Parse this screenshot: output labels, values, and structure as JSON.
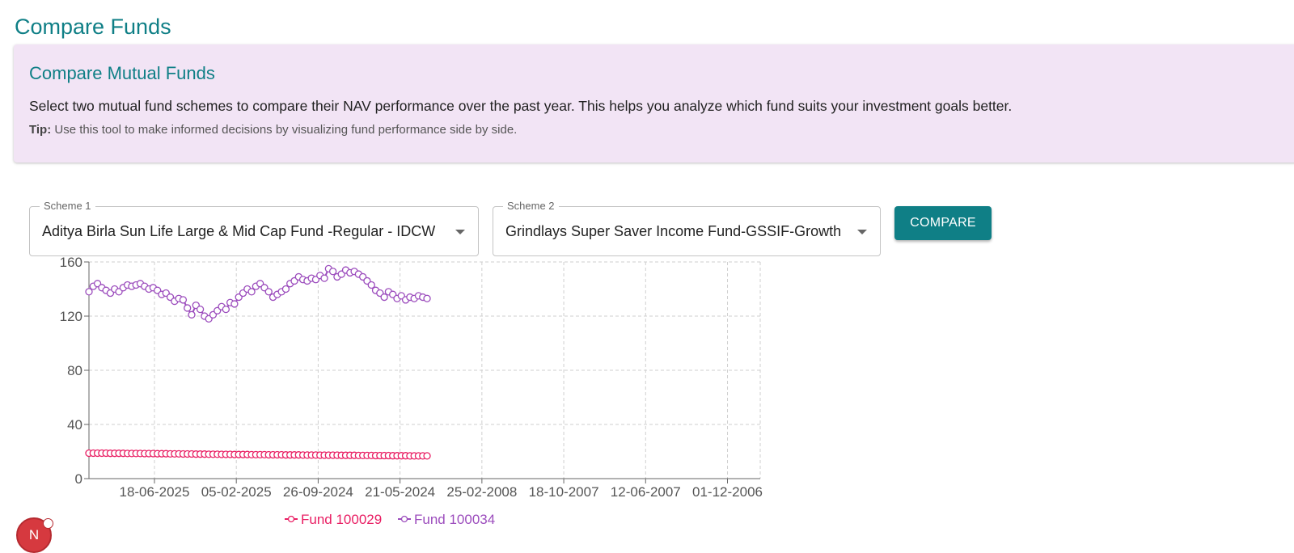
{
  "page": {
    "title": "Compare Funds"
  },
  "info": {
    "heading": "Compare Mutual Funds",
    "description": "Select two mutual fund schemes to compare their NAV performance over the past year. This helps you analyze which fund suits your investment goals better.",
    "tip_label": "Tip:",
    "tip_text": " Use this tool to make informed decisions by visualizing fund performance side by side."
  },
  "form": {
    "scheme1": {
      "label": "Scheme 1",
      "value": "Aditya Birla Sun Life Large & Mid Cap Fund -Regular - IDCW"
    },
    "scheme2": {
      "label": "Scheme 2",
      "value": "Grindlays Super Saver Income Fund-GSSIF-Growth"
    },
    "compare_label": "COMPARE"
  },
  "chart_data": {
    "type": "line",
    "x_tick_labels": [
      "18-06-2025",
      "05-02-2025",
      "26-09-2024",
      "21-05-2024",
      "25-02-2008",
      "18-10-2007",
      "12-06-2007",
      "01-12-2006"
    ],
    "y_ticks": [
      0,
      40,
      80,
      120,
      160
    ],
    "ylim": [
      0,
      160
    ],
    "grid": true,
    "legend_position": "bottom",
    "series": [
      {
        "name": "Fund 100029",
        "color": "#e91e63",
        "marker": "open-circle",
        "values": [
          18.8,
          18.8,
          18.8,
          18.8,
          18.8,
          18.7,
          18.7,
          18.7,
          18.7,
          18.6,
          18.6,
          18.6,
          18.6,
          18.5,
          18.5,
          18.5,
          18.4,
          18.4,
          18.4,
          18.3,
          18.3,
          18.3,
          18.2,
          18.2,
          18.2,
          18.1,
          18.1,
          18.1,
          18.0,
          18.0,
          18.0,
          17.9,
          17.9,
          17.9,
          17.8,
          17.8,
          17.8,
          17.8,
          17.7,
          17.7,
          17.7,
          17.7,
          17.6,
          17.6,
          17.6,
          17.6,
          17.5,
          17.5,
          17.5,
          17.5,
          17.4,
          17.4,
          17.4,
          17.4,
          17.3,
          17.3,
          17.3,
          17.3,
          17.3,
          17.2,
          17.2,
          17.2,
          17.2,
          17.1,
          17.1,
          17.1,
          17.1,
          17.0,
          17.0,
          17.0,
          17.0,
          16.9,
          16.9,
          16.9,
          16.9,
          16.8,
          16.8,
          16.8,
          16.8,
          16.8
        ]
      },
      {
        "name": "Fund 100034",
        "color": "#9c4dbd",
        "marker": "open-circle",
        "values": [
          138,
          142,
          144,
          141,
          139,
          137,
          140,
          138,
          141,
          143,
          142,
          143,
          144,
          142,
          140,
          141,
          139,
          136,
          137,
          134,
          131,
          133,
          132,
          126,
          121,
          128,
          125,
          120,
          118,
          121,
          124,
          127,
          125,
          130,
          129,
          134,
          137,
          140,
          138,
          142,
          144,
          141,
          138,
          134,
          136,
          138,
          140,
          144,
          146,
          149,
          147,
          146,
          148,
          147,
          150,
          148,
          155,
          153,
          149,
          151,
          154,
          152,
          153,
          151,
          149,
          146,
          143,
          139,
          137,
          134,
          138,
          136,
          133,
          135,
          132,
          134,
          133,
          135,
          134,
          133
        ]
      }
    ]
  },
  "fab": {
    "letter": "N"
  }
}
